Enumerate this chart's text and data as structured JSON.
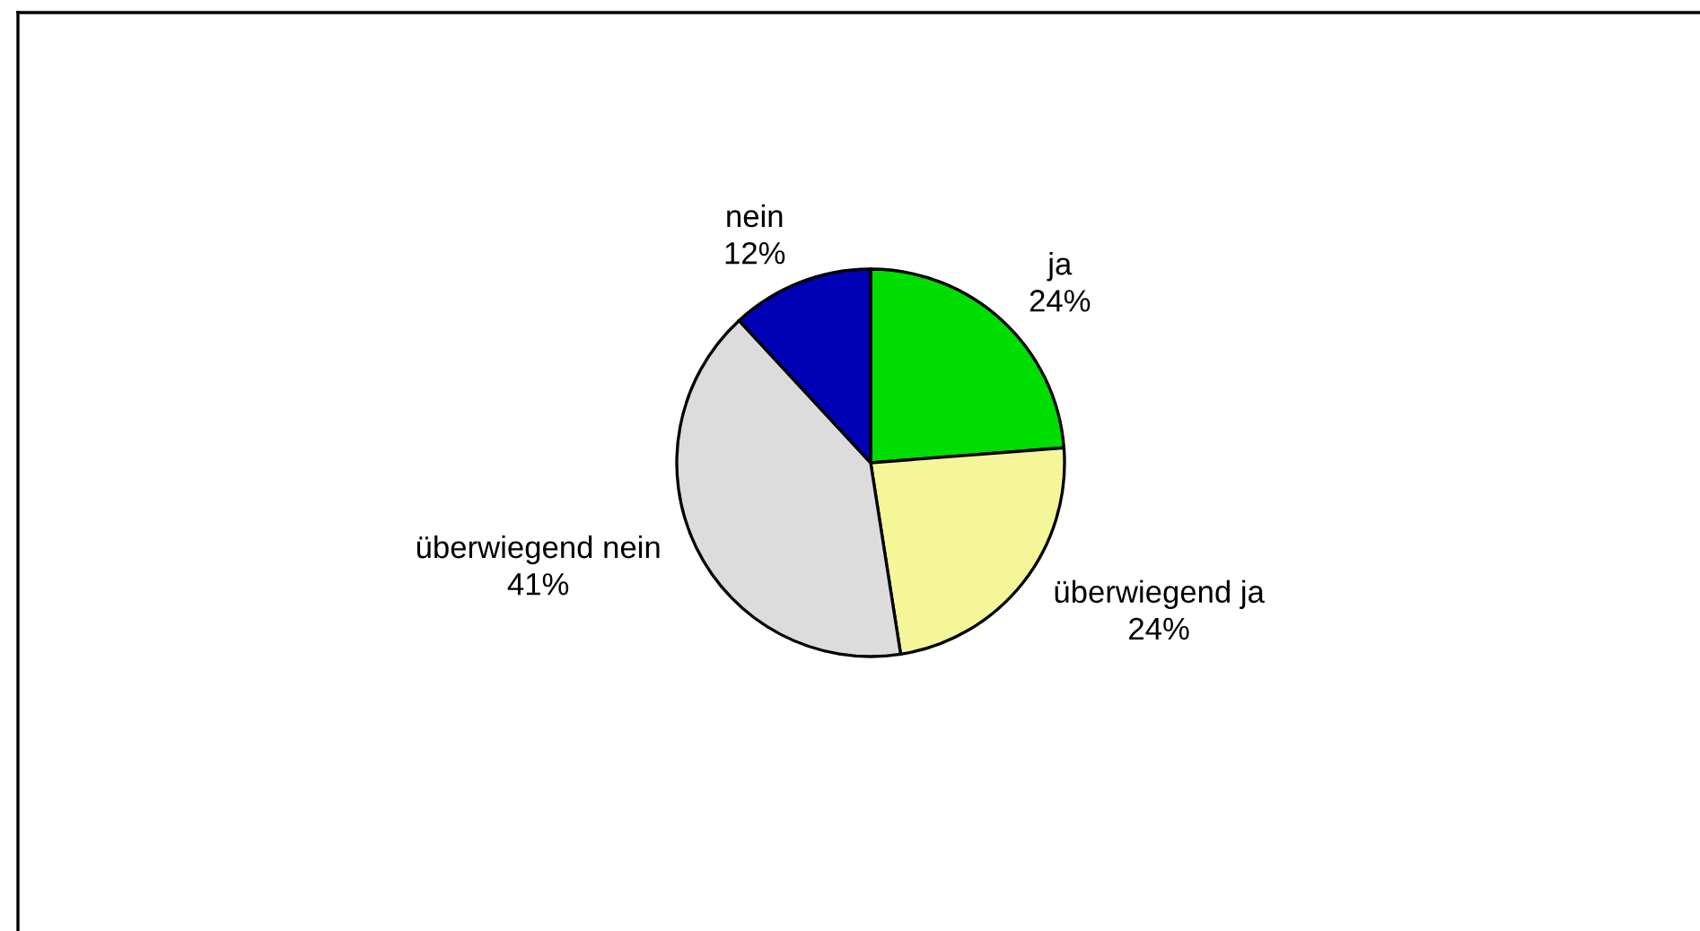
{
  "chart_data": {
    "type": "pie",
    "categories": [
      "ja",
      "überwiegend ja",
      "überwiegend nein",
      "nein"
    ],
    "values": [
      24,
      24,
      41,
      12
    ],
    "colors": [
      "#00dd00",
      "#f5f59a",
      "#dcdcdc",
      "#0000b4"
    ],
    "value_labels": [
      "24%",
      "24%",
      "41%",
      "12%"
    ]
  }
}
